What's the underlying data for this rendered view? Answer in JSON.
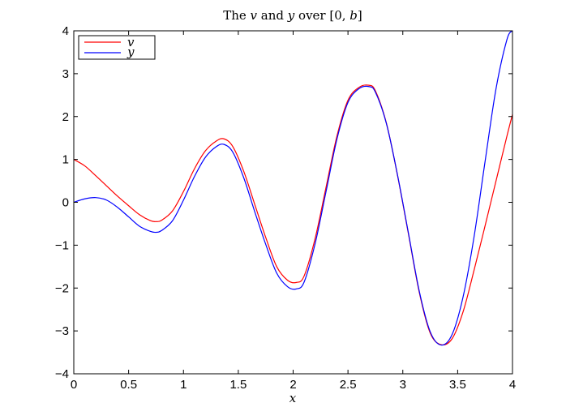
{
  "chart_data": {
    "type": "line",
    "title": {
      "prefix": "The ",
      "var1": "v",
      "mid": " and ",
      "var2": "y",
      "suffix_plain": " over [0, ",
      "var3": "b",
      "close": "]"
    },
    "xlabel": "x",
    "ylabel": "",
    "xlim": [
      0,
      4
    ],
    "ylim": [
      -4,
      4
    ],
    "x_ticks": [
      0,
      0.5,
      1,
      1.5,
      2,
      2.5,
      3,
      3.5,
      4
    ],
    "x_tick_labels": [
      "0",
      "0.5",
      "1",
      "1.5",
      "2",
      "2.5",
      "3",
      "3.5",
      "4"
    ],
    "y_ticks": [
      4,
      3,
      2,
      1,
      0,
      -1,
      -2,
      -3,
      -4
    ],
    "y_tick_labels": [
      "4",
      "3",
      "2",
      "1",
      "0",
      "−1",
      "−2",
      "−3",
      "−4"
    ],
    "grid": false,
    "legend_position": "top-left",
    "series": [
      {
        "name": "v",
        "color": "#ff0000",
        "x": [
          0,
          0.1,
          0.2,
          0.3,
          0.4,
          0.5,
          0.6,
          0.7,
          0.75,
          0.8,
          0.9,
          1.0,
          1.1,
          1.2,
          1.3,
          1.37,
          1.45,
          1.55,
          1.65,
          1.75,
          1.85,
          1.95,
          2.03,
          2.1,
          2.2,
          2.3,
          2.4,
          2.5,
          2.6,
          2.69,
          2.75,
          2.85,
          2.95,
          3.05,
          3.15,
          3.25,
          3.35,
          3.45,
          3.55,
          3.65,
          3.75,
          3.85,
          3.95,
          4.0
        ],
        "y": [
          1.0,
          0.85,
          0.62,
          0.38,
          0.14,
          -0.08,
          -0.29,
          -0.43,
          -0.45,
          -0.42,
          -0.2,
          0.25,
          0.78,
          1.2,
          1.43,
          1.48,
          1.3,
          0.72,
          -0.05,
          -0.82,
          -1.5,
          -1.82,
          -1.87,
          -1.72,
          -0.85,
          0.35,
          1.55,
          2.38,
          2.68,
          2.73,
          2.6,
          1.85,
          0.65,
          -0.72,
          -2.1,
          -3.05,
          -3.32,
          -3.18,
          -2.55,
          -1.58,
          -0.55,
          0.5,
          1.55,
          2.05
        ]
      },
      {
        "name": "y",
        "color": "#0000ff",
        "x": [
          0,
          0.1,
          0.2,
          0.3,
          0.4,
          0.5,
          0.6,
          0.7,
          0.75,
          0.8,
          0.9,
          1.0,
          1.1,
          1.2,
          1.3,
          1.37,
          1.45,
          1.55,
          1.65,
          1.75,
          1.85,
          1.95,
          2.03,
          2.1,
          2.2,
          2.3,
          2.4,
          2.5,
          2.6,
          2.69,
          2.75,
          2.85,
          2.95,
          3.05,
          3.15,
          3.25,
          3.35,
          3.45,
          3.55,
          3.65,
          3.75,
          3.85,
          3.95,
          4.0
        ],
        "y": [
          0.0,
          0.08,
          0.11,
          0.05,
          -0.12,
          -0.34,
          -0.56,
          -0.68,
          -0.7,
          -0.66,
          -0.43,
          0.05,
          0.6,
          1.05,
          1.3,
          1.35,
          1.17,
          0.57,
          -0.22,
          -0.98,
          -1.65,
          -1.97,
          -2.02,
          -1.86,
          -0.97,
          0.25,
          1.48,
          2.33,
          2.65,
          2.7,
          2.57,
          1.84,
          0.66,
          -0.7,
          -2.07,
          -3.02,
          -3.33,
          -3.08,
          -2.2,
          -0.8,
          0.95,
          2.65,
          3.8,
          4.0
        ]
      }
    ]
  }
}
